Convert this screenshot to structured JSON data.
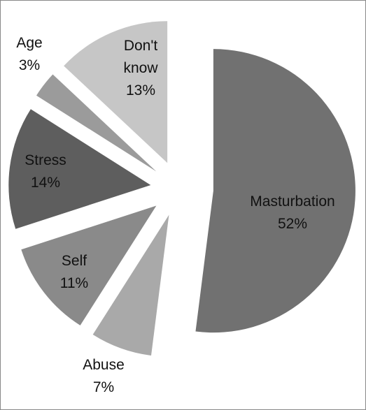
{
  "chart_data": {
    "type": "pie",
    "categories": [
      "Masturbation",
      "Abuse",
      "Self",
      "Stress",
      "Age",
      "Don't know"
    ],
    "values": [
      52,
      7,
      11,
      14,
      3,
      13
    ],
    "value_labels": [
      "52%",
      "7%",
      "11%",
      "14%",
      "3%",
      "13%"
    ],
    "colors": [
      "#717171",
      "#a9a9a9",
      "#8a8a8a",
      "#5e5e5e",
      "#9b9b9b",
      "#c6c6c6"
    ]
  }
}
